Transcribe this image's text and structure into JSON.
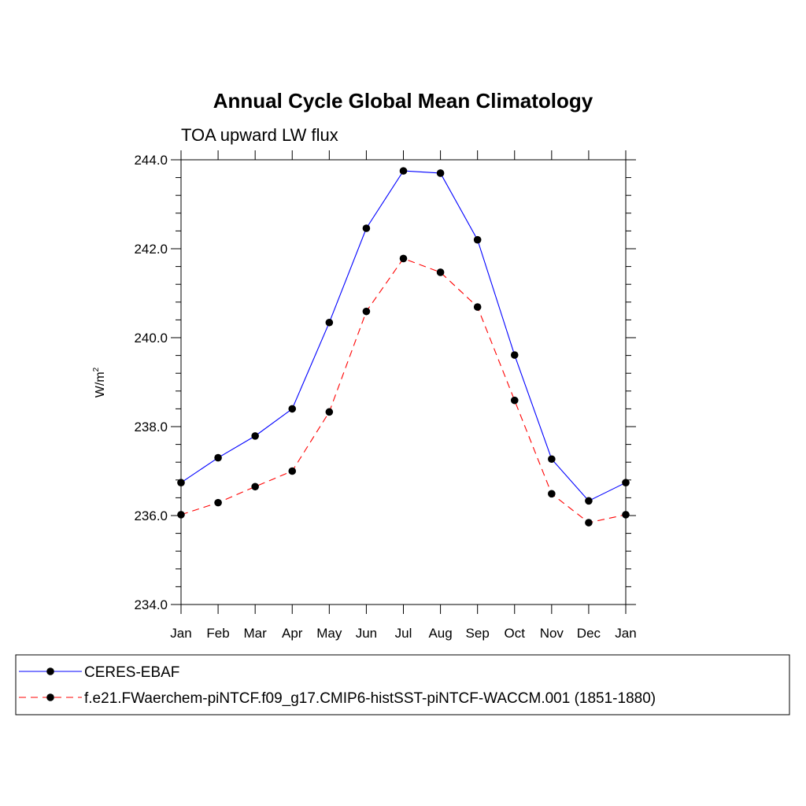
{
  "chart_data": {
    "type": "line",
    "title": "Annual Cycle Global Mean Climatology",
    "subtitle": "TOA upward LW flux",
    "ylabel": "W/m",
    "ylabel_superscript": "2",
    "xlabel": "",
    "categories": [
      "Jan",
      "Feb",
      "Mar",
      "Apr",
      "May",
      "Jun",
      "Jul",
      "Aug",
      "Sep",
      "Oct",
      "Nov",
      "Dec",
      "Jan"
    ],
    "ylim": [
      234.0,
      244.0
    ],
    "yticks": [
      234.0,
      236.0,
      238.0,
      240.0,
      242.0,
      244.0
    ],
    "ytick_labels": [
      "234.0",
      "236.0",
      "238.0",
      "240.0",
      "242.0",
      "244.0"
    ],
    "grid": false,
    "legend_position": "bottom",
    "series": [
      {
        "name": "CERES-EBAF",
        "color": "#0000ff",
        "dash": "solid",
        "marker": "filled-circle",
        "values": [
          236.74,
          237.3,
          237.79,
          238.4,
          240.34,
          242.46,
          243.75,
          243.7,
          242.2,
          239.61,
          237.27,
          236.33,
          236.74
        ]
      },
      {
        "name": "f.e21.FWaerchem-piNTCF.f09_g17.CMIP6-histSST-piNTCF-WACCM.001 (1851-1880)",
        "color": "#ff0000",
        "dash": "dashed",
        "marker": "filled-circle",
        "values": [
          236.02,
          236.29,
          236.65,
          237.0,
          238.33,
          240.59,
          241.78,
          241.47,
          240.69,
          238.59,
          236.49,
          235.84,
          236.02
        ]
      }
    ]
  }
}
